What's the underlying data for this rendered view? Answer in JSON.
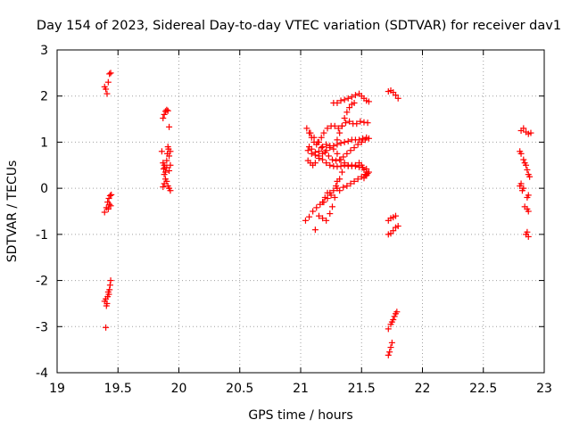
{
  "chart_data": {
    "type": "scatter",
    "title": "Day 154 of 2023, Sidereal Day-to-day VTEC variation (SDTVAR) for receiver dav1",
    "xlabel": "GPS time / hours",
    "ylabel": "SDTVAR / TECUs",
    "xlim": [
      19,
      23
    ],
    "ylim": [
      -4,
      3
    ],
    "xticks": [
      "19",
      "19.5",
      "20",
      "20.5",
      "21",
      "21.5",
      "22",
      "22.5",
      "23"
    ],
    "yticks": [
      "-4",
      "-3",
      "-2",
      "-1",
      "0",
      "1",
      "2",
      "3"
    ],
    "grid": true,
    "marker": "plus",
    "color": "#ff0000",
    "segments": [
      [
        19.39,
        2.2,
        19.4,
        2.15,
        19.41,
        2.05,
        19.42,
        2.3,
        19.43,
        2.48,
        19.44,
        2.5
      ],
      [
        19.39,
        -0.52,
        19.405,
        -0.42,
        19.415,
        -0.3,
        19.425,
        -0.22,
        19.435,
        -0.16,
        19.445,
        -0.14
      ],
      [
        19.42,
        -0.45,
        19.43,
        -0.35,
        19.44,
        -0.38
      ],
      [
        19.39,
        -2.45,
        19.4,
        -2.4,
        19.405,
        -2.55,
        19.41,
        -2.5,
        19.415,
        -2.35,
        19.42,
        -2.25,
        19.425,
        -2.3,
        19.43,
        -2.2,
        19.435,
        -2.1,
        19.44,
        -2.0
      ],
      [
        19.4,
        -3.02
      ],
      [
        19.87,
        1.52,
        19.88,
        1.6,
        19.89,
        1.67,
        19.9,
        1.7,
        19.91,
        1.68
      ],
      [
        19.92,
        1.33
      ],
      [
        19.86,
        0.8,
        19.87,
        0.55,
        19.875,
        0.42,
        19.88,
        0.3,
        19.885,
        0.45,
        19.89,
        0.35,
        19.9,
        0.6,
        19.905,
        0.75,
        19.91,
        0.9,
        19.915,
        0.85,
        19.92,
        0.7,
        19.93,
        0.8
      ],
      [
        19.87,
        0.03,
        19.88,
        0.1,
        19.89,
        0.2,
        19.9,
        0.15,
        19.91,
        0.05,
        19.92,
        0.0,
        19.93,
        -0.05
      ],
      [
        19.88,
        0.5,
        19.9,
        0.45,
        19.92,
        0.38,
        19.93,
        0.5
      ],
      [
        21.05,
        1.3,
        21.07,
        1.2,
        21.09,
        1.1,
        21.11,
        1.0,
        21.13,
        0.95,
        21.15,
        1.0,
        21.17,
        1.1,
        21.19,
        1.2,
        21.22,
        1.3,
        21.25,
        1.35,
        21.28,
        1.35,
        21.31,
        1.3,
        21.34,
        1.35,
        21.37,
        1.42,
        21.4,
        1.45,
        21.43,
        1.4,
        21.46,
        1.4,
        21.49,
        1.45,
        21.52,
        1.43,
        21.55,
        1.42
      ],
      [
        21.06,
        0.6,
        21.08,
        0.55,
        21.1,
        0.5,
        21.12,
        0.55,
        21.15,
        0.65,
        21.18,
        0.75,
        21.21,
        0.82,
        21.24,
        0.88,
        21.27,
        0.92,
        21.3,
        0.95,
        21.33,
        0.98,
        21.36,
        1.0,
        21.39,
        1.02,
        21.42,
        1.05,
        21.45,
        1.05,
        21.48,
        1.05,
        21.51,
        1.08,
        21.54,
        1.1,
        21.56,
        1.08
      ],
      [
        21.07,
        0.9,
        21.09,
        0.85,
        21.12,
        0.78,
        21.15,
        0.7,
        21.18,
        0.62,
        21.21,
        0.55,
        21.24,
        0.5,
        21.27,
        0.48,
        21.3,
        0.47,
        21.33,
        0.48,
        21.36,
        0.5,
        21.39,
        0.5,
        21.42,
        0.5,
        21.45,
        0.48,
        21.48,
        0.46,
        21.51,
        0.45,
        21.54,
        0.42,
        21.56,
        0.35
      ],
      [
        21.06,
        0.82,
        21.09,
        0.75,
        21.12,
        0.72,
        21.15,
        0.8,
        21.18,
        0.9,
        21.21,
        0.95,
        21.24,
        0.92,
        21.27,
        0.85,
        21.3,
        0.75,
        21.33,
        0.62,
        21.36,
        0.55,
        21.39,
        0.48,
        21.42,
        0.48,
        21.45,
        0.5,
        21.48,
        0.55,
        21.5,
        0.5,
        21.52,
        0.4,
        21.54,
        0.28
      ],
      [
        21.08,
        1.2,
        21.11,
        1.1,
        21.14,
        1.0,
        21.17,
        0.88,
        21.2,
        0.78,
        21.23,
        0.7,
        21.26,
        0.62,
        21.29,
        0.6,
        21.32,
        0.62,
        21.35,
        0.68,
        21.38,
        0.75,
        21.41,
        0.82,
        21.44,
        0.88,
        21.47,
        0.95,
        21.5,
        1.0,
        21.53,
        1.05
      ],
      [
        21.27,
        1.85,
        21.3,
        1.85,
        21.33,
        1.9,
        21.36,
        1.92,
        21.39,
        1.95,
        21.42,
        1.98,
        21.45,
        2.02,
        21.48,
        2.05,
        21.5,
        2.0,
        21.52,
        1.95,
        21.54,
        1.9,
        21.56,
        1.88
      ],
      [
        21.3,
        1.05,
        21.32,
        1.2,
        21.34,
        1.35,
        21.36,
        1.52,
        21.38,
        1.65,
        21.4,
        1.75,
        21.42,
        1.82,
        21.44,
        1.85
      ],
      [
        21.04,
        -0.7,
        21.07,
        -0.62,
        21.1,
        -0.5,
        21.13,
        -0.42,
        21.16,
        -0.35,
        21.19,
        -0.3,
        21.22,
        -0.22,
        21.25,
        -0.15,
        21.27,
        -0.05,
        21.29,
        0.05,
        21.3,
        0.15
      ],
      [
        21.15,
        -0.6,
        21.18,
        -0.65,
        21.21,
        -0.7,
        21.24,
        -0.55,
        21.26,
        -0.4,
        21.28,
        -0.2,
        21.3,
        0.0,
        21.32,
        0.2,
        21.34,
        0.35
      ],
      [
        21.18,
        -0.3,
        21.2,
        -0.2,
        21.22,
        -0.1,
        21.24,
        -0.1
      ],
      [
        21.32,
        -0.05,
        21.35,
        0.02,
        21.38,
        0.05,
        21.41,
        0.1,
        21.44,
        0.15,
        21.47,
        0.2,
        21.5,
        0.25,
        21.53,
        0.3,
        21.55,
        0.32
      ],
      [
        21.12,
        -0.9
      ],
      [
        21.52,
        0.22,
        21.54,
        0.28
      ],
      [
        21.72,
        2.1,
        21.74,
        2.12,
        21.76,
        2.08,
        21.78,
        2.02,
        21.8,
        1.95
      ],
      [
        21.72,
        -0.7,
        21.74,
        -0.65,
        21.76,
        -0.63,
        21.78,
        -0.6
      ],
      [
        21.72,
        -1.0,
        21.74,
        -0.98,
        21.76,
        -0.92,
        21.78,
        -0.85,
        21.8,
        -0.82
      ],
      [
        21.72,
        -3.05,
        21.74,
        -2.95,
        21.75,
        -2.9,
        21.76,
        -2.85,
        21.77,
        -2.78,
        21.78,
        -2.72,
        21.79,
        -2.68
      ],
      [
        21.72,
        -3.62,
        21.73,
        -3.55,
        21.74,
        -3.45,
        21.75,
        -3.35
      ],
      [
        22.81,
        1.25,
        22.83,
        1.3,
        22.85,
        1.22,
        22.87,
        1.18,
        22.89,
        1.2
      ],
      [
        22.8,
        0.8,
        22.81,
        0.75,
        22.83,
        0.62,
        22.84,
        0.55,
        22.85,
        0.5,
        22.86,
        0.4,
        22.87,
        0.3,
        22.88,
        0.25
      ],
      [
        22.8,
        0.05,
        22.81,
        0.1,
        22.82,
        -0.05,
        22.83,
        0.0
      ],
      [
        22.86,
        -0.2,
        22.87,
        -0.15
      ],
      [
        22.84,
        -0.4,
        22.86,
        -0.45,
        22.87,
        -0.5
      ],
      [
        22.85,
        -1.0,
        22.86,
        -0.95,
        22.87,
        -1.05
      ]
    ]
  }
}
